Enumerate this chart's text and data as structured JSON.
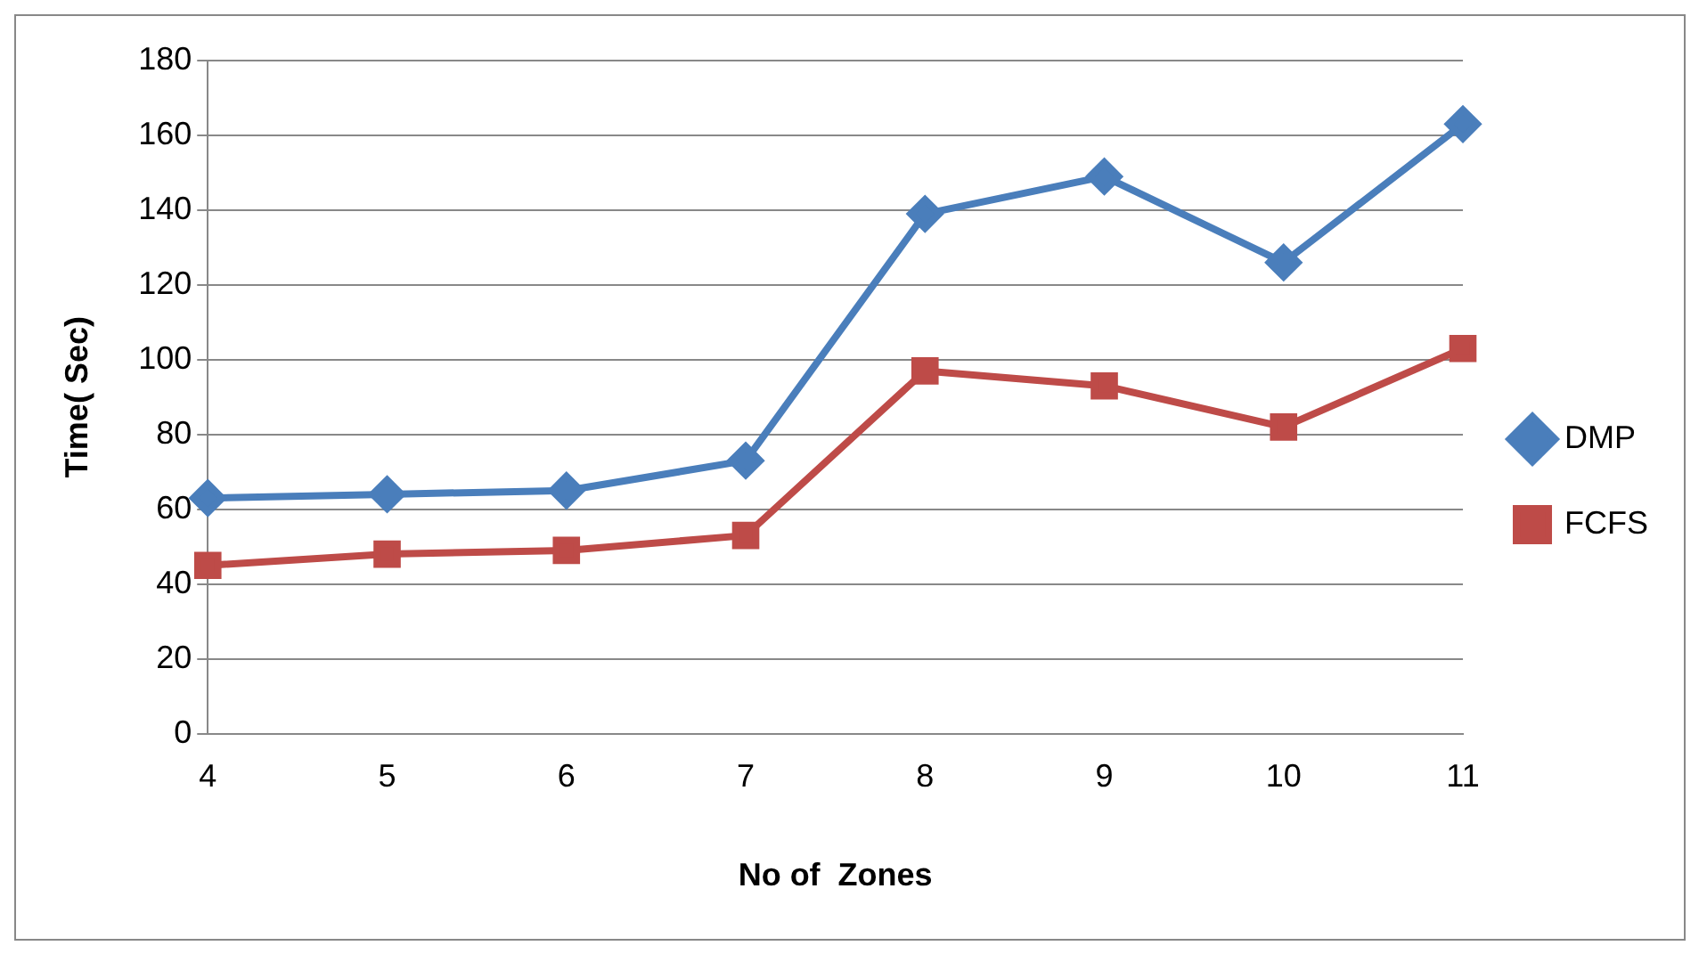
{
  "chart_data": {
    "type": "line",
    "xlabel": "No of  Zones",
    "ylabel": "Time( Sec)",
    "categories": [
      "4",
      "5",
      "6",
      "7",
      "8",
      "9",
      "10",
      "11"
    ],
    "series": [
      {
        "name": "DMP",
        "color": "#4a7ebb",
        "marker": "diamond",
        "values": [
          63,
          64,
          65,
          73,
          139,
          149,
          126,
          163
        ]
      },
      {
        "name": "FCFS",
        "color": "#be4b48",
        "marker": "square",
        "values": [
          45,
          48,
          49,
          53,
          97,
          93,
          82,
          103
        ]
      }
    ],
    "ylim": [
      0,
      180
    ],
    "yticks": [
      0,
      20,
      40,
      60,
      80,
      100,
      120,
      140,
      160,
      180
    ],
    "grid": "y",
    "legend": "right",
    "line_style": "solid"
  }
}
